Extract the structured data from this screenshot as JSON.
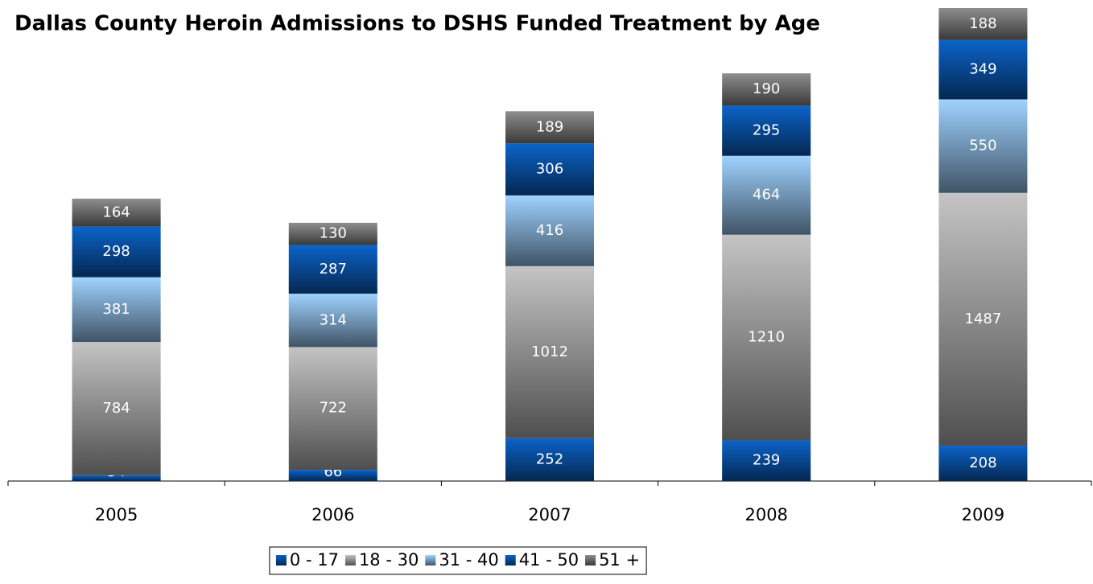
{
  "chart_data": {
    "type": "bar",
    "stacked": true,
    "title": "Dallas County Heroin Admissions to DSHS Funded Treatment by Age",
    "categories": [
      "2005",
      "2006",
      "2007",
      "2008",
      "2009"
    ],
    "series": [
      {
        "name": "0 - 17",
        "color": "#0b63c9",
        "values": [
          34,
          66,
          252,
          239,
          208
        ]
      },
      {
        "name": "18 - 30",
        "color": "#c4c4c4",
        "values": [
          784,
          722,
          1012,
          1210,
          1487
        ]
      },
      {
        "name": "31 - 40",
        "color": "#9fd2ff",
        "values": [
          381,
          314,
          416,
          464,
          550
        ]
      },
      {
        "name": "41 - 50",
        "color": "#0b63c9",
        "values": [
          298,
          287,
          306,
          295,
          349
        ]
      },
      {
        "name": "51 +",
        "color": "#8e8e8e",
        "values": [
          164,
          130,
          189,
          190,
          188
        ]
      }
    ],
    "legend": "bottom"
  }
}
